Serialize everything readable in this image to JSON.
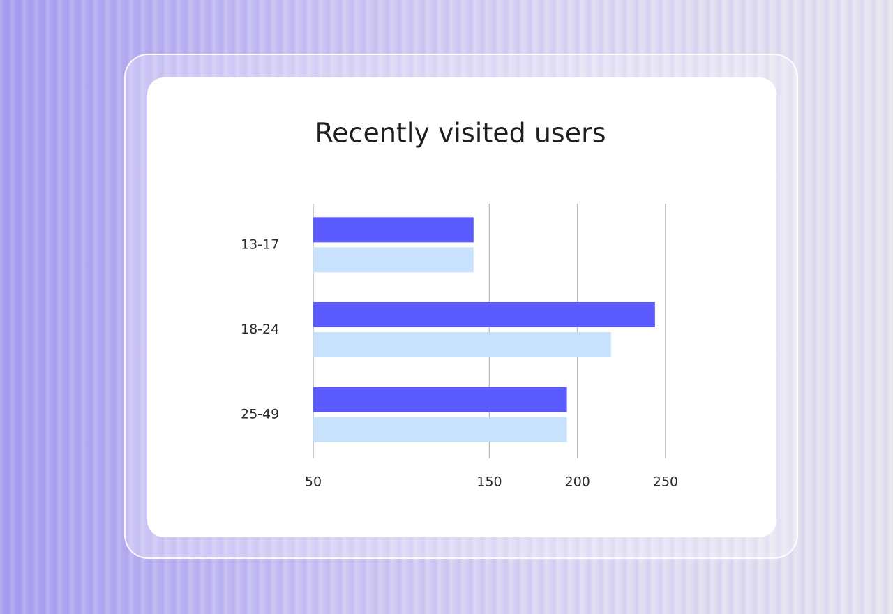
{
  "chart_data": {
    "type": "hbar",
    "title": "Recently visited users",
    "categories": [
      "13-17",
      "18-24",
      "25-49"
    ],
    "series": [
      {
        "color": "#5b5bff",
        "values": [
          141,
          244,
          194
        ]
      },
      {
        "color": "#c8e1fc",
        "values": [
          141,
          219,
          194
        ]
      }
    ],
    "xlim": [
      50,
      250
    ],
    "xticks": [
      50,
      150,
      200,
      250
    ],
    "grid": true
  }
}
